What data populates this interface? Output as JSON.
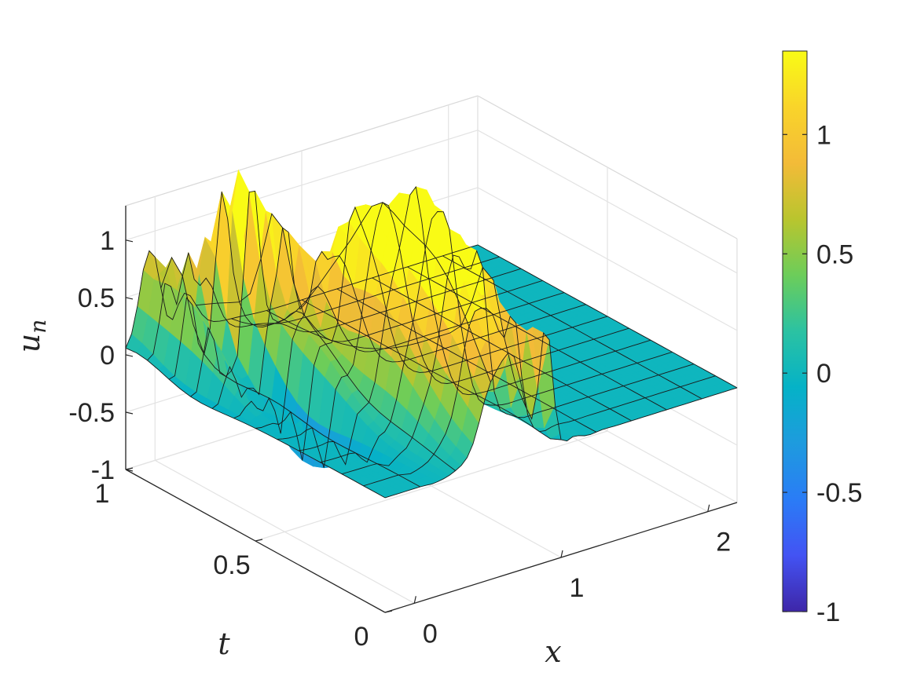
{
  "chart_data": {
    "type": "surface",
    "title": "",
    "xlabel": "x",
    "ylabel": "t",
    "zlabel": "u",
    "zlabel_sub": "n",
    "xlim": [
      -0.2,
      2.2
    ],
    "tlim": [
      0,
      1
    ],
    "zlim": [
      -1,
      1.3
    ],
    "clim": [
      -1,
      1.35
    ],
    "x_ticks": [
      "0",
      "1",
      "2"
    ],
    "t_ticks": [
      "0",
      "0.5",
      "1"
    ],
    "z_ticks": [
      "-1",
      "-0.5",
      "0",
      "0.5",
      "1"
    ],
    "colorbar_ticks": [
      "-1",
      "-0.5",
      "0",
      "0.5",
      "1"
    ],
    "colormap": "parula",
    "grid": true,
    "surface_extent": {
      "x": [
        -0.2,
        2.2
      ],
      "t": [
        0,
        1
      ]
    },
    "features": [
      {
        "x": -0.07,
        "t": 0.88,
        "amp": 1.05,
        "width": 0.02
      },
      {
        "x": 0.18,
        "t": 0.75,
        "amp": 0.85,
        "width": 0.04
      },
      {
        "x": 0.12,
        "t": 0.6,
        "amp": -0.8,
        "width": 0.015
      },
      {
        "x": -0.05,
        "t": 0.75,
        "amp": -0.45,
        "width": 0.03
      },
      {
        "x": 0.5,
        "t": 0.45,
        "amp": 1.2,
        "width": 0.05
      },
      {
        "x": 0.62,
        "t": 0.18,
        "amp": 1.3,
        "width": 0.05
      }
    ]
  }
}
